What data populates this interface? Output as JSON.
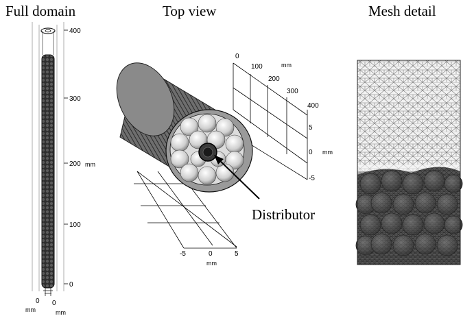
{
  "panels": {
    "full_domain": {
      "title": "Full domain",
      "z_axis": {
        "ticks": [
          "400",
          "300",
          "200",
          "100",
          "0"
        ],
        "unit": "mm"
      },
      "base_axes": {
        "ticks": [
          "0",
          "0"
        ],
        "units": [
          "mm",
          "mm"
        ]
      }
    },
    "top_view": {
      "title": "Top view",
      "length_axis": {
        "ticks": [
          "0",
          "100",
          "200",
          "300",
          "400"
        ],
        "unit": "mm"
      },
      "y_axis": {
        "ticks": [
          "5",
          "0",
          "-5"
        ],
        "unit": "mm"
      },
      "x_axis": {
        "ticks": [
          "-5",
          "0",
          "5"
        ],
        "unit": "mm"
      },
      "annotation": "Distributor"
    },
    "mesh_detail": {
      "title": "Mesh detail"
    }
  },
  "colors": {
    "line": "#000000",
    "packing_dark": "#3a3a3a",
    "mesh_light": "#e6e6e6",
    "cylinder_gray": "#8a8a8a"
  }
}
